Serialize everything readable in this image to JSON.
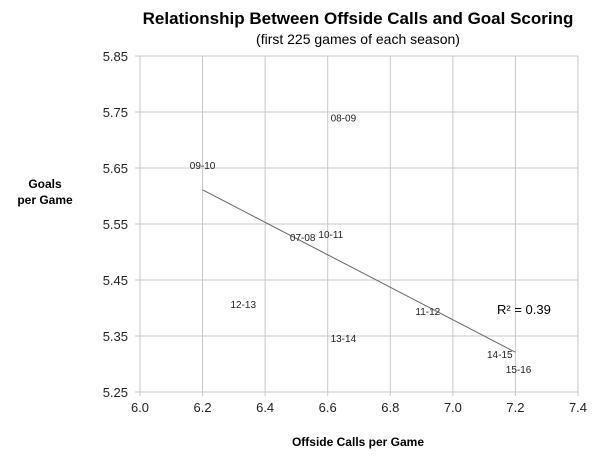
{
  "chart_data": {
    "type": "scatter",
    "title": "Relationship Between Offside Calls and Goal Scoring",
    "subtitle": "(first 225 games of each season)",
    "xlabel": "Offside Calls per Game",
    "ylabel": [
      "Goals",
      "per Game"
    ],
    "xlim": [
      6.0,
      7.4
    ],
    "ylim": [
      5.25,
      5.85
    ],
    "xticks": [
      "6.0",
      "6.2",
      "6.4",
      "6.6",
      "6.8",
      "7.0",
      "7.2",
      "7.4"
    ],
    "yticks": [
      "5.25",
      "5.35",
      "5.45",
      "5.55",
      "5.65",
      "5.75",
      "5.85"
    ],
    "grid": true,
    "points": [
      {
        "label": "09-10",
        "x": 6.2,
        "y": 5.655
      },
      {
        "label": "08-09",
        "x": 6.65,
        "y": 5.74
      },
      {
        "label": "07-08",
        "x": 6.52,
        "y": 5.527
      },
      {
        "label": "10-11",
        "x": 6.61,
        "y": 5.532
      },
      {
        "label": "12-13",
        "x": 6.33,
        "y": 5.407
      },
      {
        "label": "11-12",
        "x": 6.92,
        "y": 5.395
      },
      {
        "label": "13-14",
        "x": 6.65,
        "y": 5.346
      },
      {
        "label": "14-15",
        "x": 7.15,
        "y": 5.318
      },
      {
        "label": "15-16",
        "x": 7.21,
        "y": 5.291
      }
    ],
    "trendline": {
      "x": [
        6.2,
        7.2
      ],
      "y": [
        5.611,
        5.321
      ],
      "r2_label": "R² = 0.39"
    }
  }
}
